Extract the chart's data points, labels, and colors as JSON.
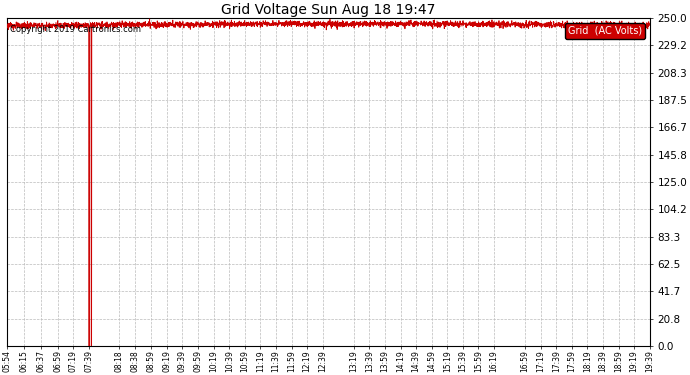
{
  "title": "Grid Voltage Sun Aug 18 19:47",
  "copyright_text": "Copyright 2019 Cartronics.com",
  "legend_label": "Grid  (AC Volts)",
  "legend_bg": "#cc0000",
  "legend_fg": "#ffffff",
  "yticks": [
    0.0,
    20.8,
    41.7,
    62.5,
    83.3,
    104.2,
    125.0,
    145.8,
    166.7,
    187.5,
    208.3,
    229.2,
    250.0
  ],
  "ylim": [
    0.0,
    250.0
  ],
  "x_start_minutes": 354,
  "x_end_minutes": 1179,
  "xtick_labels": [
    "05:54",
    "06:15",
    "06:37",
    "06:59",
    "07:19",
    "07:39",
    "08:18",
    "08:38",
    "08:59",
    "09:19",
    "09:39",
    "09:59",
    "10:19",
    "10:39",
    "10:59",
    "11:19",
    "11:39",
    "11:59",
    "12:19",
    "12:39",
    "13:19",
    "13:39",
    "13:59",
    "14:19",
    "14:39",
    "14:59",
    "15:19",
    "15:39",
    "15:59",
    "16:19",
    "16:59",
    "17:19",
    "17:39",
    "17:59",
    "18:19",
    "18:39",
    "18:59",
    "19:19",
    "19:39"
  ],
  "xtick_positions_minutes": [
    354,
    375,
    397,
    419,
    439,
    459,
    498,
    518,
    539,
    559,
    579,
    599,
    619,
    639,
    659,
    679,
    699,
    719,
    739,
    759,
    799,
    819,
    839,
    859,
    879,
    899,
    919,
    939,
    959,
    979,
    1019,
    1039,
    1059,
    1079,
    1099,
    1119,
    1139,
    1159,
    1179
  ],
  "grid_color": "#bbbbbb",
  "line_color": "#cc0000",
  "bg_color": "#ffffff",
  "plot_bg_color": "#ffffff",
  "nominal_voltage": 244.0,
  "noise_amplitude": 1.2,
  "spike1_x_minutes": 459,
  "spike2_x_minutes": 462,
  "spike_bottom": 0.0,
  "figsize": [
    6.9,
    3.75
  ],
  "dpi": 100
}
